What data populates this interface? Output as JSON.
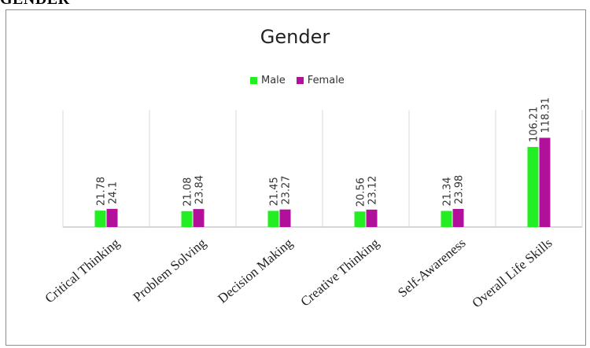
{
  "page_heading": "GENDER",
  "colors": {
    "male": "#22ee22",
    "female": "#b0109a",
    "grid": "#d9d9d9",
    "axis": "#bfbfbf"
  },
  "chart_data": {
    "type": "bar",
    "title": "Gender",
    "xlabel": "",
    "ylabel": "",
    "ylim": [
      0,
      130
    ],
    "grid": "vertical separators between categories",
    "legend_position": "top",
    "categories": [
      "Critical Thinking",
      "Problem Solving",
      "Decision Making",
      "Creative Thinking",
      "Self-Awareness",
      "Overall Life Skills"
    ],
    "series": [
      {
        "name": "Male",
        "values": [
          21.78,
          21.08,
          21.45,
          20.56,
          21.34,
          106.21
        ],
        "labels": [
          "21.78",
          "21.08",
          "21.45",
          "20.56",
          "21.34",
          "106.21"
        ]
      },
      {
        "name": "Female",
        "values": [
          24.1,
          23.84,
          23.27,
          23.12,
          23.98,
          118.31
        ],
        "labels": [
          "24.1",
          "23.84",
          "23.27",
          "23.12",
          "23.98",
          "118.31"
        ]
      }
    ]
  }
}
